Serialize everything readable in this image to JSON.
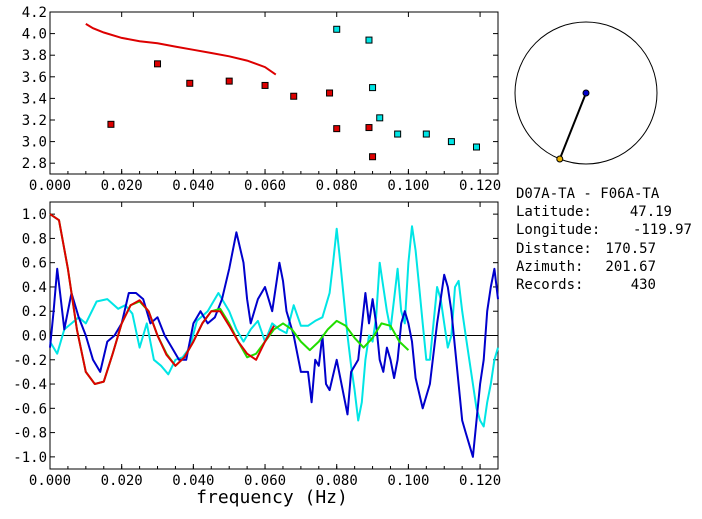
{
  "station_pair": "D07A-TA - F06A-TA",
  "info": [
    {
      "label": "Latitude:",
      "value": "47.19"
    },
    {
      "label": "Longitude:",
      "value": "-119.97"
    },
    {
      "label": "Distance:",
      "value": "170.57"
    },
    {
      "label": "Azimuth:",
      "value": "201.67"
    },
    {
      "label": "Records:",
      "value": "430"
    }
  ],
  "azimuth_deg": 201.67,
  "colors": {
    "red": "#dd0000",
    "cyan": "#00e5e5",
    "blue": "#0000cc",
    "green": "#22dd00",
    "black": "#000000"
  },
  "chart_data": [
    {
      "type": "scatter",
      "xlim": [
        0.0,
        0.125
      ],
      "ylim": [
        2.7,
        4.2
      ],
      "xticks": [
        "0.000",
        "0.020",
        "0.040",
        "0.060",
        "0.080",
        "0.100",
        "0.120"
      ],
      "yticks": [
        "2.8",
        "3.0",
        "3.2",
        "3.4",
        "3.6",
        "3.8",
        "4.0",
        "4.2"
      ],
      "curve": {
        "color": "#dd0000",
        "x": [
          0.01,
          0.012,
          0.015,
          0.02,
          0.025,
          0.03,
          0.035,
          0.04,
          0.045,
          0.05,
          0.055,
          0.06,
          0.063
        ],
        "y": [
          4.09,
          4.05,
          4.01,
          3.96,
          3.93,
          3.91,
          3.88,
          3.85,
          3.82,
          3.79,
          3.75,
          3.69,
          3.62
        ]
      },
      "points_red": {
        "x": [
          0.017,
          0.03,
          0.039,
          0.05,
          0.06,
          0.068,
          0.078,
          0.08,
          0.089,
          0.09
        ],
        "y": [
          3.16,
          3.72,
          3.54,
          3.56,
          3.52,
          3.42,
          3.45,
          3.12,
          3.13,
          2.86
        ]
      },
      "points_cyan": {
        "x": [
          0.08,
          0.089,
          0.09,
          0.092,
          0.097,
          0.105,
          0.112,
          0.119
        ],
        "y": [
          4.04,
          3.94,
          3.5,
          3.22,
          3.07,
          3.07,
          3.0,
          2.95
        ]
      }
    },
    {
      "type": "line",
      "xlim": [
        0.0,
        0.125
      ],
      "ylim": [
        -1.1,
        1.1
      ],
      "xlabel": "frequency (Hz)",
      "xticks": [
        "0.000",
        "0.020",
        "0.040",
        "0.060",
        "0.080",
        "0.100",
        "0.120"
      ],
      "yticks": [
        "-1.0",
        "-0.8",
        "-0.6",
        "-0.4",
        "-0.2",
        "0.0",
        "0.2",
        "0.4",
        "0.6",
        "0.8",
        "1.0"
      ],
      "series": [
        {
          "color": "#00e5e5",
          "x": [
            0.0,
            0.002,
            0.004,
            0.006,
            0.008,
            0.01,
            0.013,
            0.016,
            0.019,
            0.021,
            0.023,
            0.025,
            0.027,
            0.029,
            0.031,
            0.033,
            0.035,
            0.037,
            0.039,
            0.041,
            0.044,
            0.047,
            0.05,
            0.052,
            0.054,
            0.056,
            0.058,
            0.06,
            0.062,
            0.064,
            0.066,
            0.068,
            0.07,
            0.072,
            0.074,
            0.076,
            0.078,
            0.079,
            0.08,
            0.081,
            0.082,
            0.083,
            0.084,
            0.085,
            0.086,
            0.087,
            0.088,
            0.089,
            0.09,
            0.091,
            0.092,
            0.093,
            0.094,
            0.095,
            0.096,
            0.097,
            0.098,
            0.099,
            0.1,
            0.101,
            0.102,
            0.103,
            0.104,
            0.105,
            0.106,
            0.107,
            0.108,
            0.109,
            0.11,
            0.111,
            0.112,
            0.113,
            0.114,
            0.115,
            0.116,
            0.117,
            0.118,
            0.119,
            0.12,
            0.121,
            0.122,
            0.123,
            0.124,
            0.125
          ],
          "y": [
            -0.05,
            -0.15,
            0.05,
            0.1,
            0.15,
            0.1,
            0.28,
            0.3,
            0.22,
            0.25,
            0.18,
            -0.1,
            0.1,
            -0.2,
            -0.25,
            -0.32,
            -0.2,
            -0.18,
            -0.1,
            0.12,
            0.2,
            0.35,
            0.2,
            0.05,
            -0.05,
            0.05,
            0.12,
            -0.05,
            0.1,
            0.05,
            0.02,
            0.25,
            0.08,
            0.08,
            0.12,
            0.15,
            0.35,
            0.6,
            0.88,
            0.6,
            0.3,
            0.0,
            -0.25,
            -0.45,
            -0.7,
            -0.55,
            -0.2,
            0.0,
            -0.05,
            0.15,
            0.6,
            0.4,
            0.2,
            0.05,
            0.3,
            0.55,
            0.2,
            0.1,
            0.6,
            0.9,
            0.7,
            0.4,
            0.1,
            -0.2,
            -0.2,
            0.1,
            0.4,
            0.3,
            0.1,
            -0.1,
            0.0,
            0.4,
            0.45,
            0.2,
            0.0,
            -0.2,
            -0.4,
            -0.6,
            -0.7,
            -0.75,
            -0.55,
            -0.4,
            -0.2,
            -0.1
          ]
        },
        {
          "color": "#0000cc",
          "x": [
            0.0,
            0.001,
            0.002,
            0.003,
            0.004,
            0.005,
            0.006,
            0.008,
            0.01,
            0.012,
            0.014,
            0.016,
            0.018,
            0.02,
            0.022,
            0.024,
            0.026,
            0.028,
            0.03,
            0.032,
            0.034,
            0.036,
            0.038,
            0.04,
            0.042,
            0.044,
            0.046,
            0.048,
            0.05,
            0.052,
            0.054,
            0.055,
            0.056,
            0.058,
            0.06,
            0.062,
            0.064,
            0.065,
            0.066,
            0.068,
            0.07,
            0.072,
            0.073,
            0.074,
            0.075,
            0.076,
            0.077,
            0.078,
            0.08,
            0.082,
            0.083,
            0.084,
            0.086,
            0.088,
            0.089,
            0.09,
            0.091,
            0.092,
            0.093,
            0.094,
            0.095,
            0.096,
            0.097,
            0.098,
            0.099,
            0.1,
            0.101,
            0.102,
            0.104,
            0.106,
            0.108,
            0.109,
            0.11,
            0.111,
            0.112,
            0.113,
            0.114,
            0.115,
            0.116,
            0.117,
            0.118,
            0.119,
            0.12,
            0.121,
            0.122,
            0.123,
            0.124,
            0.125
          ],
          "y": [
            -0.1,
            0.2,
            0.55,
            0.3,
            0.05,
            0.2,
            0.35,
            0.15,
            0.0,
            -0.2,
            -0.3,
            -0.05,
            0.0,
            0.1,
            0.35,
            0.35,
            0.3,
            0.1,
            0.15,
            0.0,
            -0.1,
            -0.2,
            -0.2,
            0.1,
            0.2,
            0.1,
            0.15,
            0.3,
            0.55,
            0.85,
            0.6,
            0.3,
            0.1,
            0.3,
            0.4,
            0.2,
            0.6,
            0.45,
            0.2,
            0.0,
            -0.3,
            -0.3,
            -0.55,
            -0.2,
            -0.25,
            0.0,
            -0.4,
            -0.45,
            -0.2,
            -0.5,
            -0.65,
            -0.3,
            -0.2,
            0.35,
            0.1,
            0.3,
            0.1,
            -0.2,
            -0.3,
            -0.1,
            -0.2,
            -0.35,
            -0.2,
            0.1,
            0.2,
            0.1,
            -0.05,
            -0.35,
            -0.6,
            -0.4,
            0.1,
            0.3,
            0.5,
            0.4,
            0.2,
            -0.1,
            -0.4,
            -0.7,
            -0.8,
            -0.9,
            -1.0,
            -0.7,
            -0.4,
            -0.2,
            0.2,
            0.4,
            0.55,
            0.3
          ]
        },
        {
          "color": "#22dd00",
          "x": [
            0.0,
            0.0025,
            0.005,
            0.0075,
            0.01,
            0.0125,
            0.015,
            0.0175,
            0.02,
            0.0225,
            0.025,
            0.0275,
            0.03,
            0.0325,
            0.035,
            0.0375,
            0.04,
            0.0425,
            0.045,
            0.0475,
            0.05,
            0.0525,
            0.055,
            0.0575,
            0.06,
            0.0625,
            0.065,
            0.0675,
            0.07,
            0.0725,
            0.075,
            0.0775,
            0.08,
            0.0825,
            0.085,
            0.0875,
            0.09,
            0.0925,
            0.095,
            0.0975,
            0.1
          ],
          "y": [
            1.0,
            0.95,
            0.55,
            0.05,
            -0.3,
            -0.4,
            -0.38,
            -0.15,
            0.1,
            0.25,
            0.28,
            0.2,
            0.0,
            -0.15,
            -0.25,
            -0.18,
            -0.05,
            0.1,
            0.2,
            0.22,
            0.1,
            -0.05,
            -0.18,
            -0.15,
            -0.05,
            0.05,
            0.1,
            0.05,
            -0.05,
            -0.12,
            -0.05,
            0.05,
            0.12,
            0.08,
            -0.02,
            -0.1,
            -0.02,
            0.1,
            0.08,
            -0.05,
            -0.12
          ]
        },
        {
          "color": "#dd0000",
          "x": [
            0.0,
            0.0025,
            0.005,
            0.0075,
            0.01,
            0.0125,
            0.015,
            0.0175,
            0.02,
            0.0225,
            0.025,
            0.0275,
            0.03,
            0.0325,
            0.035,
            0.0375,
            0.04,
            0.0425,
            0.045,
            0.0475,
            0.05,
            0.0525,
            0.055,
            0.0575,
            0.06,
            0.0625
          ],
          "y": [
            1.0,
            0.95,
            0.55,
            0.05,
            -0.3,
            -0.4,
            -0.38,
            -0.15,
            0.1,
            0.25,
            0.29,
            0.2,
            0.0,
            -0.16,
            -0.25,
            -0.18,
            -0.05,
            0.1,
            0.2,
            0.2,
            0.08,
            -0.05,
            -0.15,
            -0.2,
            -0.05,
            0.08
          ]
        }
      ]
    }
  ]
}
